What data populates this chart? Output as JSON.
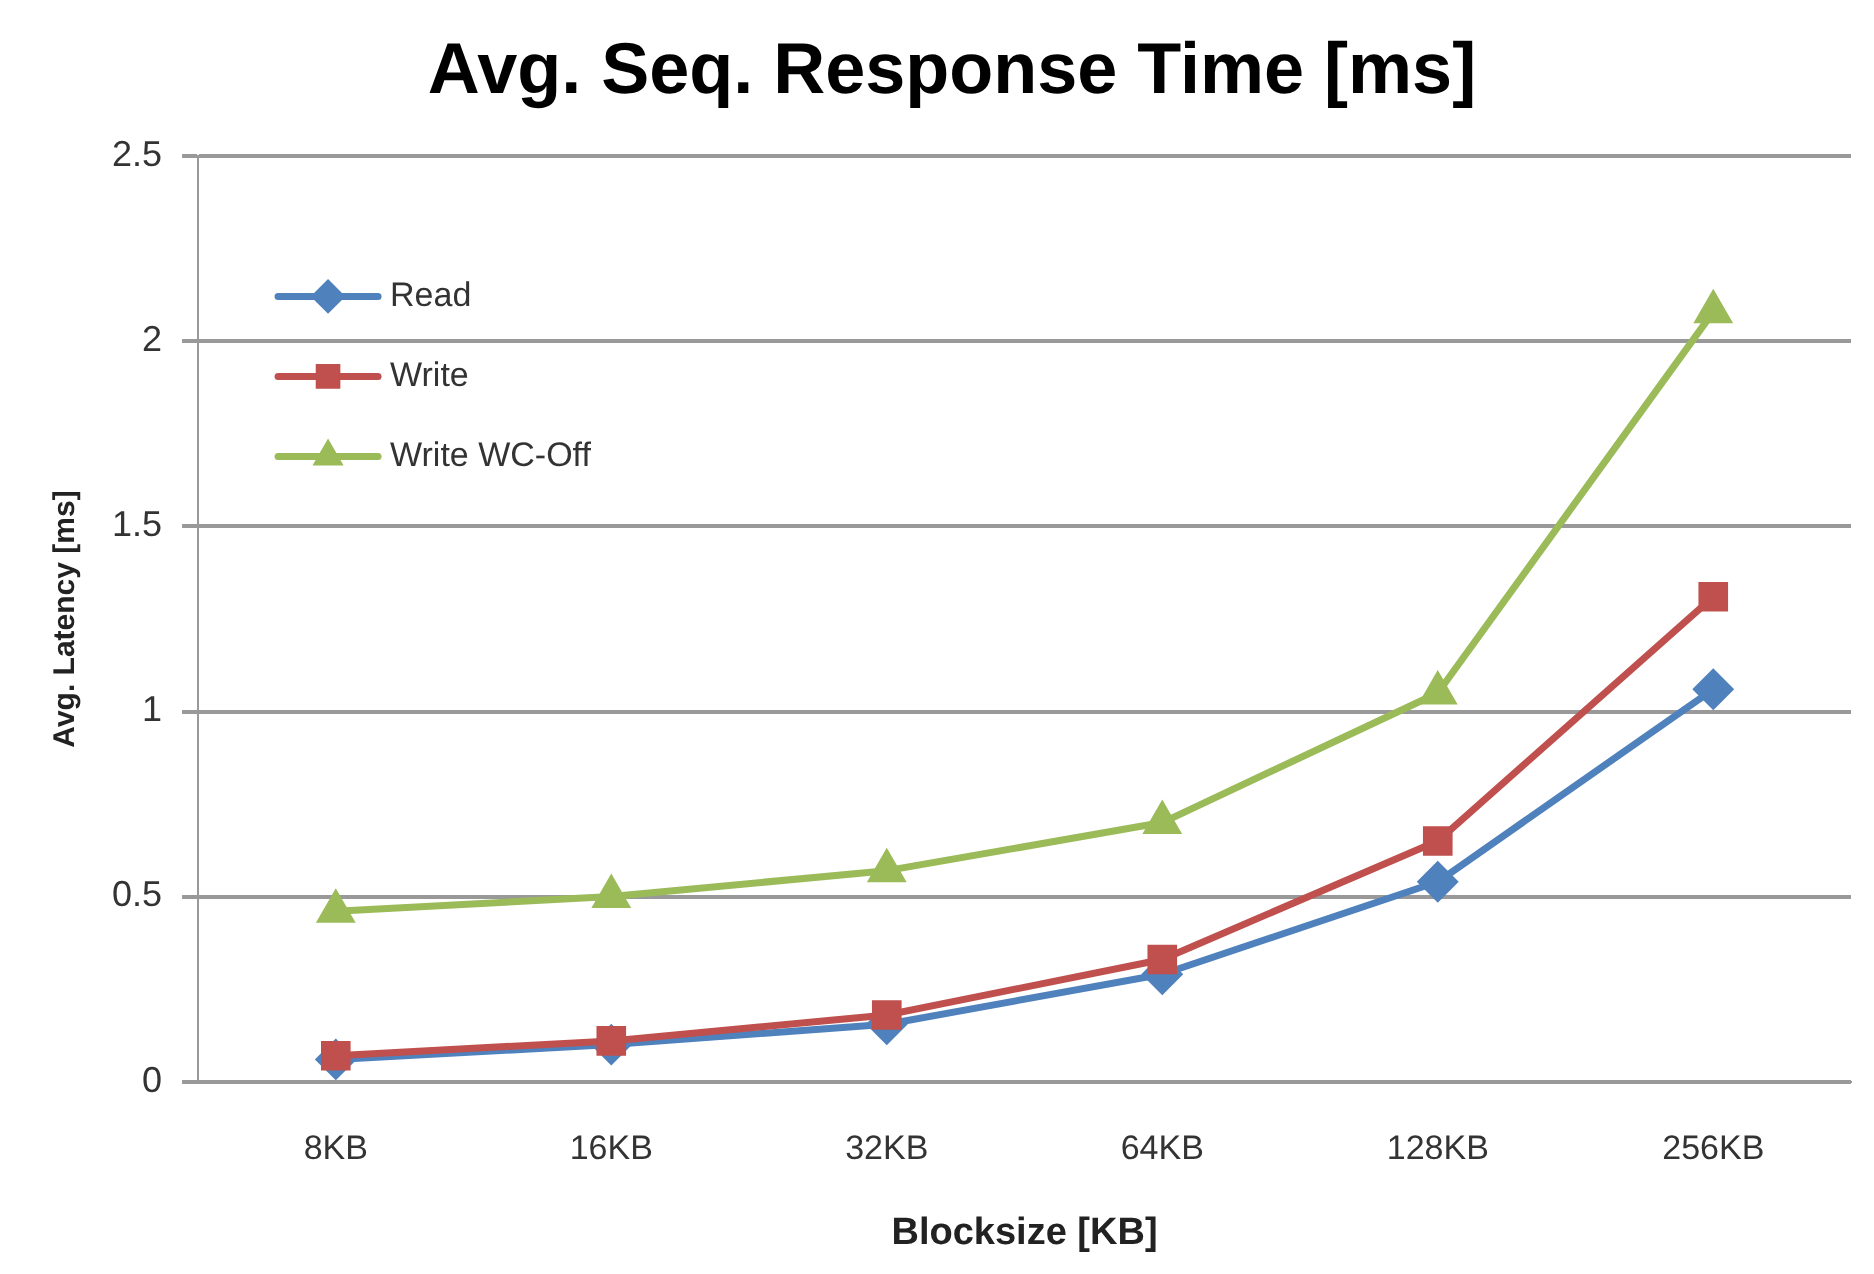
{
  "chart_data": {
    "type": "line",
    "title": "Avg. Seq. Response Time [ms]",
    "xlabel": "Blocksize [KB]",
    "ylabel": "Avg. Latency [ms]",
    "categories": [
      "8KB",
      "16KB",
      "32KB",
      "64KB",
      "128KB",
      "256KB"
    ],
    "series": [
      {
        "name": "Read",
        "color": "#4f81bd",
        "marker": "diamond",
        "values": [
          0.06,
          0.1,
          0.155,
          0.29,
          0.54,
          1.06
        ]
      },
      {
        "name": "Write",
        "color": "#c0504d",
        "marker": "square",
        "values": [
          0.07,
          0.11,
          0.18,
          0.33,
          0.65,
          1.31
        ]
      },
      {
        "name": "Write WC-Off",
        "color": "#9bbb59",
        "marker": "triangle",
        "values": [
          0.46,
          0.5,
          0.57,
          0.7,
          1.05,
          2.08
        ]
      }
    ],
    "ylim": [
      0,
      2.5
    ],
    "yticks": [
      0,
      0.5,
      1,
      1.5,
      2,
      2.5
    ],
    "grid": "y",
    "legend": "top left"
  }
}
